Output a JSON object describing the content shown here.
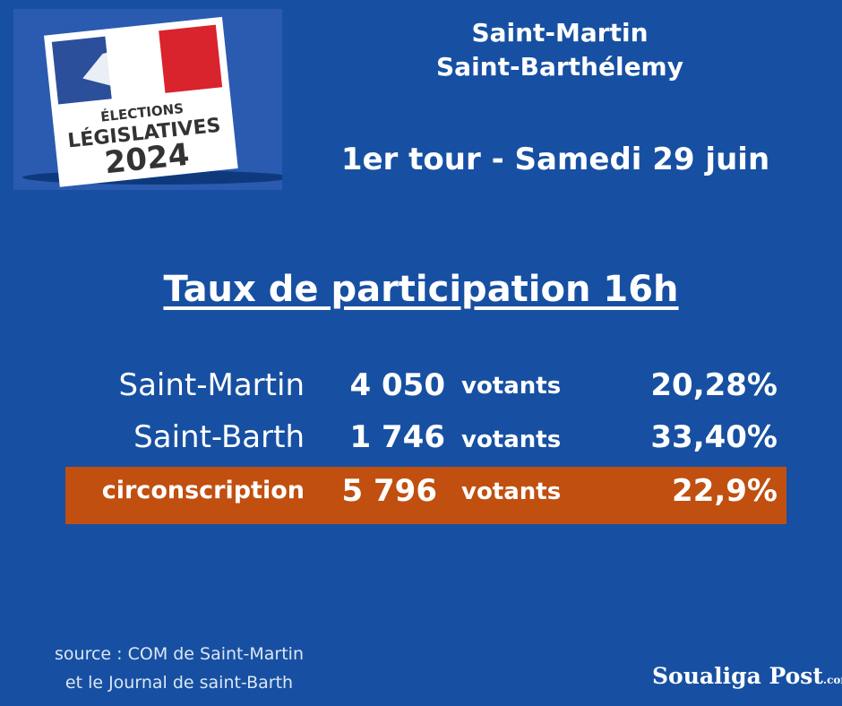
{
  "logo": {
    "line1": "ÉLECTIONS",
    "line2": "LÉGISLATIVES",
    "year": "2024"
  },
  "header": {
    "place1": "Saint-Martin",
    "place2": "Saint-Barthélemy",
    "round": "1er tour - Samedi 29 juin"
  },
  "title": "Taux de participation 16h",
  "table": {
    "rows": [
      [
        "Saint-Martin",
        "4 050",
        "votants",
        "20,28%"
      ],
      [
        "Saint-Barth",
        "1 746",
        "votants",
        "33,40%"
      ],
      [
        "circonscription",
        "5 796",
        "votants",
        "22,9%"
      ]
    ]
  },
  "source": {
    "line1": "source : COM de Saint-Martin",
    "line2": "et le Journal de saint-Barth"
  },
  "brand": {
    "name": "Soualiga Post",
    "suffix": ".com"
  }
}
